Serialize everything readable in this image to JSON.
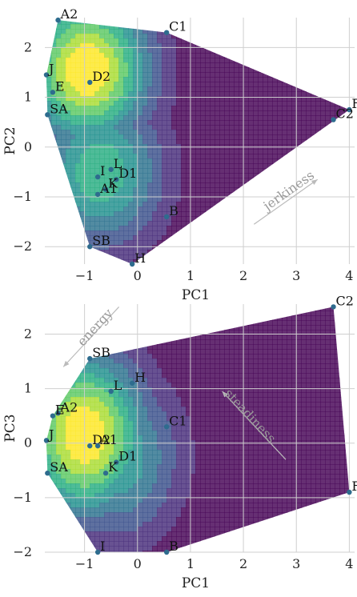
{
  "colors": {
    "point": "#2e6c8e",
    "viridis": [
      "#440154",
      "#472c7a",
      "#3b518b",
      "#2c718e",
      "#21908d",
      "#27ad81",
      "#5cc863",
      "#aadc32",
      "#fde725"
    ]
  },
  "chart_data": [
    {
      "type": "scatter",
      "subtype": "contour",
      "xlabel": "PC1",
      "ylabel": "PC2",
      "xlim": [
        -1.75,
        4.1
      ],
      "ylim": [
        -2.35,
        2.6
      ],
      "xticks": [
        -1,
        0,
        1,
        2,
        3,
        4
      ],
      "yticks": [
        -2,
        -1,
        0,
        1,
        2
      ],
      "grid": true,
      "arrow": {
        "label": "jerkiness",
        "from": [
          2.2,
          -1.55
        ],
        "to": [
          3.4,
          -0.65
        ]
      },
      "points": [
        {
          "label": "A2",
          "x": -1.5,
          "y": 2.55
        },
        {
          "label": "C1",
          "x": 0.55,
          "y": 2.3
        },
        {
          "label": "J",
          "x": -1.72,
          "y": 1.45
        },
        {
          "label": "D2",
          "x": -0.9,
          "y": 1.3
        },
        {
          "label": "E",
          "x": -1.6,
          "y": 1.1
        },
        {
          "label": "SA",
          "x": -1.7,
          "y": 0.65
        },
        {
          "label": "F",
          "x": 4.0,
          "y": 0.75
        },
        {
          "label": "C2",
          "x": 3.7,
          "y": 0.55
        },
        {
          "label": "L",
          "x": -0.5,
          "y": -0.45
        },
        {
          "label": "I",
          "x": -0.75,
          "y": -0.6
        },
        {
          "label": "D1",
          "x": -0.4,
          "y": -0.65
        },
        {
          "label": "K",
          "x": -0.6,
          "y": -0.85
        },
        {
          "label": "A1",
          "x": -0.75,
          "y": -0.95
        },
        {
          "label": "B",
          "x": 0.55,
          "y": -1.4
        },
        {
          "label": "SB",
          "x": -0.9,
          "y": -2.0
        },
        {
          "label": "H",
          "x": -0.1,
          "y": -2.35
        }
      ]
    },
    {
      "type": "scatter",
      "subtype": "contour",
      "xlabel": "PC1",
      "ylabel": "PC3",
      "xlim": [
        -1.75,
        4.1
      ],
      "ylim": [
        -2.0,
        2.55
      ],
      "xticks": [
        -1,
        0,
        1,
        2,
        3,
        4
      ],
      "yticks": [
        -2,
        -1,
        0,
        1,
        2
      ],
      "grid": true,
      "arrows": [
        {
          "label": "energy",
          "from": [
            -0.35,
            2.5
          ],
          "to": [
            -1.4,
            1.4
          ]
        },
        {
          "label": "steadiness",
          "from": [
            2.8,
            -0.3
          ],
          "to": [
            1.6,
            0.95
          ]
        }
      ],
      "points": [
        {
          "label": "C2",
          "x": 3.7,
          "y": 2.5
        },
        {
          "label": "SB",
          "x": -0.9,
          "y": 1.55
        },
        {
          "label": "H",
          "x": -0.1,
          "y": 1.1
        },
        {
          "label": "L",
          "x": -0.5,
          "y": 0.95
        },
        {
          "label": "A2",
          "x": -1.5,
          "y": 0.55
        },
        {
          "label": "E",
          "x": -1.6,
          "y": 0.5
        },
        {
          "label": "C1",
          "x": 0.55,
          "y": 0.3
        },
        {
          "label": "J",
          "x": -1.72,
          "y": 0.05
        },
        {
          "label": "D2",
          "x": -0.9,
          "y": -0.05
        },
        {
          "label": "A1",
          "x": -0.75,
          "y": -0.05
        },
        {
          "label": "D1",
          "x": -0.4,
          "y": -0.35
        },
        {
          "label": "K",
          "x": -0.6,
          "y": -0.55
        },
        {
          "label": "SA",
          "x": -1.7,
          "y": -0.55
        },
        {
          "label": "F",
          "x": 4.0,
          "y": -0.9
        },
        {
          "label": "I",
          "x": -0.75,
          "y": -2.0
        },
        {
          "label": "B",
          "x": 0.55,
          "y": -2.0
        }
      ]
    }
  ]
}
